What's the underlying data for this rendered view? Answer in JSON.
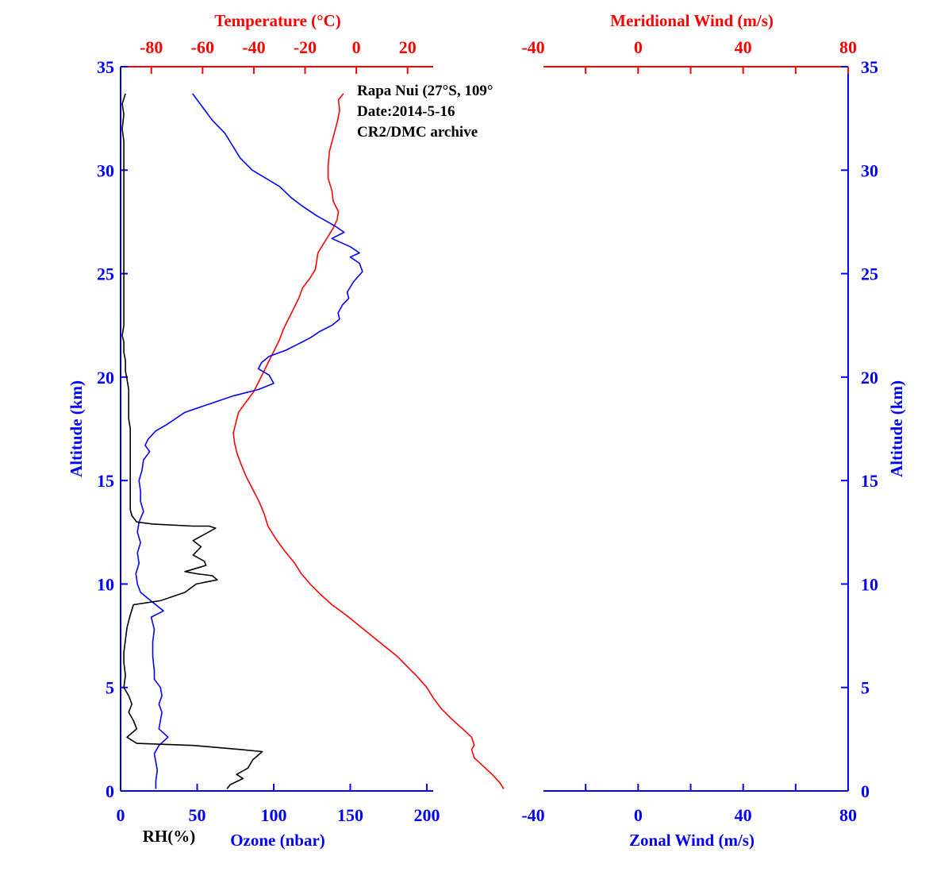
{
  "colors": {
    "temperature": "#ff0000",
    "ozone": "#0000ff",
    "rh": "#000000",
    "altitude_axis": "#0000ff",
    "wind_bottom": "#0000ff",
    "wind_top": "#ff0000"
  },
  "annotation": {
    "station": "Rapa Nui (27°S, 109°",
    "date": "Date:2014-5-16",
    "source": "CR2/DMC archive"
  },
  "chart_data": [
    {
      "type": "line",
      "panel": "left",
      "y_axis": {
        "label": "Altitude (km)",
        "range": [
          0,
          35
        ],
        "ticks": [
          0,
          5,
          10,
          15,
          20,
          25,
          30,
          35
        ]
      },
      "x_axes": {
        "ozone": {
          "label": "Ozone (nbar)",
          "range": [
            0,
            200
          ],
          "ticks": [
            0,
            50,
            100,
            150,
            200
          ]
        },
        "rh": {
          "label": "RH(%)"
        },
        "temperature": {
          "label": "Temperature (°C)",
          "range": [
            -92,
            30
          ],
          "ticks": [
            -80,
            -60,
            -40,
            -20,
            0,
            20
          ]
        }
      },
      "series": [
        {
          "name": "Temperature",
          "axis": "temperature",
          "points": [
            [
              -5,
              33.7
            ],
            [
              -7,
              33.4
            ],
            [
              -6.5,
              32.9
            ],
            [
              -7.5,
              32.3
            ],
            [
              -9,
              31.6
            ],
            [
              -10.5,
              30.9
            ],
            [
              -11,
              30.2
            ],
            [
              -11,
              29.6
            ],
            [
              -9.5,
              29
            ],
            [
              -9,
              28.5
            ],
            [
              -7,
              28
            ],
            [
              -7.5,
              27.6
            ],
            [
              -9,
              27.2
            ],
            [
              -11,
              26.8
            ],
            [
              -13,
              26.4
            ],
            [
              -15,
              26
            ],
            [
              -15.5,
              25.6
            ],
            [
              -16,
              25.2
            ],
            [
              -18,
              24.8
            ],
            [
              -21,
              24.3
            ],
            [
              -22.5,
              23.8
            ],
            [
              -24.5,
              23.3
            ],
            [
              -26.5,
              22.8
            ],
            [
              -28.5,
              22.3
            ],
            [
              -30,
              21.8
            ],
            [
              -32,
              21.3
            ],
            [
              -34,
              20.8
            ],
            [
              -36,
              20.3
            ],
            [
              -38,
              19.8
            ],
            [
              -40,
              19.3
            ],
            [
              -43,
              18.8
            ],
            [
              -46,
              18.3
            ],
            [
              -47,
              17.8
            ],
            [
              -48,
              17.3
            ],
            [
              -47.5,
              16.8
            ],
            [
              -46.5,
              16.3
            ],
            [
              -45,
              15.8
            ],
            [
              -43,
              15.2
            ],
            [
              -40.5,
              14.6
            ],
            [
              -38,
              14
            ],
            [
              -36,
              13.4
            ],
            [
              -34.5,
              12.8
            ],
            [
              -31.5,
              12.2
            ],
            [
              -28,
              11.6
            ],
            [
              -24,
              11
            ],
            [
              -21.5,
              10.5
            ],
            [
              -18,
              10
            ],
            [
              -14,
              9.5
            ],
            [
              -9.5,
              9
            ],
            [
              -4,
              8.5
            ],
            [
              1,
              8
            ],
            [
              6,
              7.5
            ],
            [
              11,
              7
            ],
            [
              16,
              6.5
            ],
            [
              20,
              6
            ],
            [
              24,
              5.5
            ],
            [
              27.5,
              5
            ],
            [
              30,
              4.5
            ],
            [
              33,
              4
            ],
            [
              37,
              3.5
            ],
            [
              41.5,
              3
            ],
            [
              45,
              2.6
            ],
            [
              46,
              2.2
            ],
            [
              45,
              2
            ],
            [
              46,
              1.6
            ],
            [
              49.5,
              1.2
            ],
            [
              53,
              0.8
            ],
            [
              56,
              0.4
            ],
            [
              57.5,
              0.1
            ]
          ]
        },
        {
          "name": "Ozone",
          "axis": "ozone",
          "points": [
            [
              47,
              33.7
            ],
            [
              54,
              33
            ],
            [
              60,
              32.4
            ],
            [
              68,
              31.8
            ],
            [
              73,
              31.2
            ],
            [
              78,
              30.6
            ],
            [
              86,
              30
            ],
            [
              95,
              29.6
            ],
            [
              104,
              29.2
            ],
            [
              111,
              28.7
            ],
            [
              118,
              28.3
            ],
            [
              128,
              27.8
            ],
            [
              140,
              27.3
            ],
            [
              146,
              27
            ],
            [
              138,
              26.7
            ],
            [
              150,
              26.3
            ],
            [
              156,
              26
            ],
            [
              150,
              25.8
            ],
            [
              156,
              25.5
            ],
            [
              158,
              25.1
            ],
            [
              152,
              24.6
            ],
            [
              148,
              24.1
            ],
            [
              149,
              23.8
            ],
            [
              145,
              23.5
            ],
            [
              142,
              23.1
            ],
            [
              143,
              22.8
            ],
            [
              138,
              22.5
            ],
            [
              130,
              22.2
            ],
            [
              124,
              21.9
            ],
            [
              116,
              21.6
            ],
            [
              108,
              21.3
            ],
            [
              97,
              21
            ],
            [
              92,
              20.7
            ],
            [
              90,
              20.4
            ],
            [
              97,
              20.1
            ],
            [
              100,
              19.7
            ],
            [
              90,
              19.4
            ],
            [
              74,
              19.1
            ],
            [
              58,
              18.7
            ],
            [
              42,
              18.3
            ],
            [
              36,
              18
            ],
            [
              30,
              17.7
            ],
            [
              23,
              17.4
            ],
            [
              18,
              17
            ],
            [
              16,
              16.7
            ],
            [
              19,
              16.4
            ],
            [
              15,
              16
            ],
            [
              14,
              15.5
            ],
            [
              12,
              15
            ],
            [
              13,
              14.5
            ],
            [
              13,
              14
            ],
            [
              15,
              13.5
            ],
            [
              12,
              13
            ],
            [
              11,
              12.5
            ],
            [
              13,
              12
            ],
            [
              11,
              11.5
            ],
            [
              12,
              11
            ],
            [
              10,
              10.5
            ],
            [
              11,
              10
            ],
            [
              13,
              9.6
            ],
            [
              18,
              9.3
            ],
            [
              28,
              8.7
            ],
            [
              20,
              8.4
            ],
            [
              22,
              7.8
            ],
            [
              21,
              7.2
            ],
            [
              21,
              6.5
            ],
            [
              22,
              5.8
            ],
            [
              22,
              5.4
            ],
            [
              26,
              5
            ],
            [
              27,
              4.6
            ],
            [
              25,
              4.2
            ],
            [
              27,
              3.8
            ],
            [
              26,
              3.4
            ],
            [
              25,
              3
            ],
            [
              31,
              2.6
            ],
            [
              25,
              2.2
            ],
            [
              22,
              1.8
            ],
            [
              24,
              1
            ],
            [
              23,
              0.5
            ],
            [
              23,
              0.1
            ]
          ]
        },
        {
          "name": "RH",
          "axis": "rh",
          "points": [
            [
              3,
              33.7
            ],
            [
              1,
              33.2
            ],
            [
              2,
              32.7
            ],
            [
              1,
              32
            ],
            [
              2,
              31.4
            ],
            [
              2,
              30.5
            ],
            [
              2,
              29.5
            ],
            [
              2,
              28.5
            ],
            [
              2,
              27.5
            ],
            [
              2,
              26.5
            ],
            [
              2,
              25.5
            ],
            [
              2,
              24.5
            ],
            [
              2,
              23.5
            ],
            [
              2,
              22.5
            ],
            [
              1,
              22
            ],
            [
              2,
              21.7
            ],
            [
              2,
              21.2
            ],
            [
              3,
              20.8
            ],
            [
              3,
              20.3
            ],
            [
              4,
              19.9
            ],
            [
              5,
              19.4
            ],
            [
              5,
              18.9
            ],
            [
              5,
              18.4
            ],
            [
              5,
              18
            ],
            [
              6,
              17.5
            ],
            [
              6,
              17
            ],
            [
              6,
              16.3
            ],
            [
              6,
              15.7
            ],
            [
              6,
              15
            ],
            [
              6,
              14.5
            ],
            [
              6,
              14
            ],
            [
              6,
              13.6
            ],
            [
              7,
              13.3
            ],
            [
              10,
              13
            ],
            [
              20,
              12.9
            ],
            [
              45,
              12.8
            ],
            [
              55,
              12.8
            ],
            [
              59,
              12.7
            ],
            [
              52,
              12.4
            ],
            [
              45,
              12.1
            ],
            [
              50,
              11.8
            ],
            [
              45,
              11.4
            ],
            [
              52,
              11.1
            ],
            [
              53,
              10.9
            ],
            [
              40,
              10.6
            ],
            [
              47,
              10.5
            ],
            [
              57,
              10.4
            ],
            [
              60,
              10.2
            ],
            [
              47,
              10
            ],
            [
              40,
              9.6
            ],
            [
              25,
              9.2
            ],
            [
              8,
              9
            ],
            [
              6,
              8.5
            ],
            [
              4,
              7.9
            ],
            [
              3,
              7.3
            ],
            [
              2,
              6.7
            ],
            [
              2,
              6.2
            ],
            [
              3,
              5.6
            ],
            [
              2,
              5
            ],
            [
              5,
              4.6
            ],
            [
              7,
              4.2
            ],
            [
              5,
              3.8
            ],
            [
              8,
              3.4
            ],
            [
              10,
              3
            ],
            [
              7,
              2.8
            ],
            [
              4,
              2.6
            ],
            [
              10,
              2.3
            ],
            [
              45,
              2.2
            ],
            [
              75,
              2
            ],
            [
              88,
              1.9
            ],
            [
              82,
              1.5
            ],
            [
              79,
              1.1
            ],
            [
              72,
              0.8
            ],
            [
              76,
              0.6
            ],
            [
              68,
              0.3
            ],
            [
              66,
              0.1
            ]
          ]
        }
      ]
    },
    {
      "type": "line",
      "panel": "right",
      "y_axis": {
        "label": "Altitude (km)",
        "range": [
          0,
          35
        ],
        "ticks": [
          0,
          5,
          10,
          15,
          20,
          25,
          30,
          35
        ]
      },
      "x_axes": {
        "zonal": {
          "label": "Zonal Wind (m/s)",
          "range": [
            -60,
            80
          ],
          "ticks": [
            -40,
            0,
            40,
            80
          ]
        },
        "meridional": {
          "label": "Meridional Wind (m/s)",
          "range": [
            -40,
            80
          ],
          "ticks": [
            -40,
            0,
            40,
            80
          ]
        }
      },
      "series": []
    }
  ]
}
